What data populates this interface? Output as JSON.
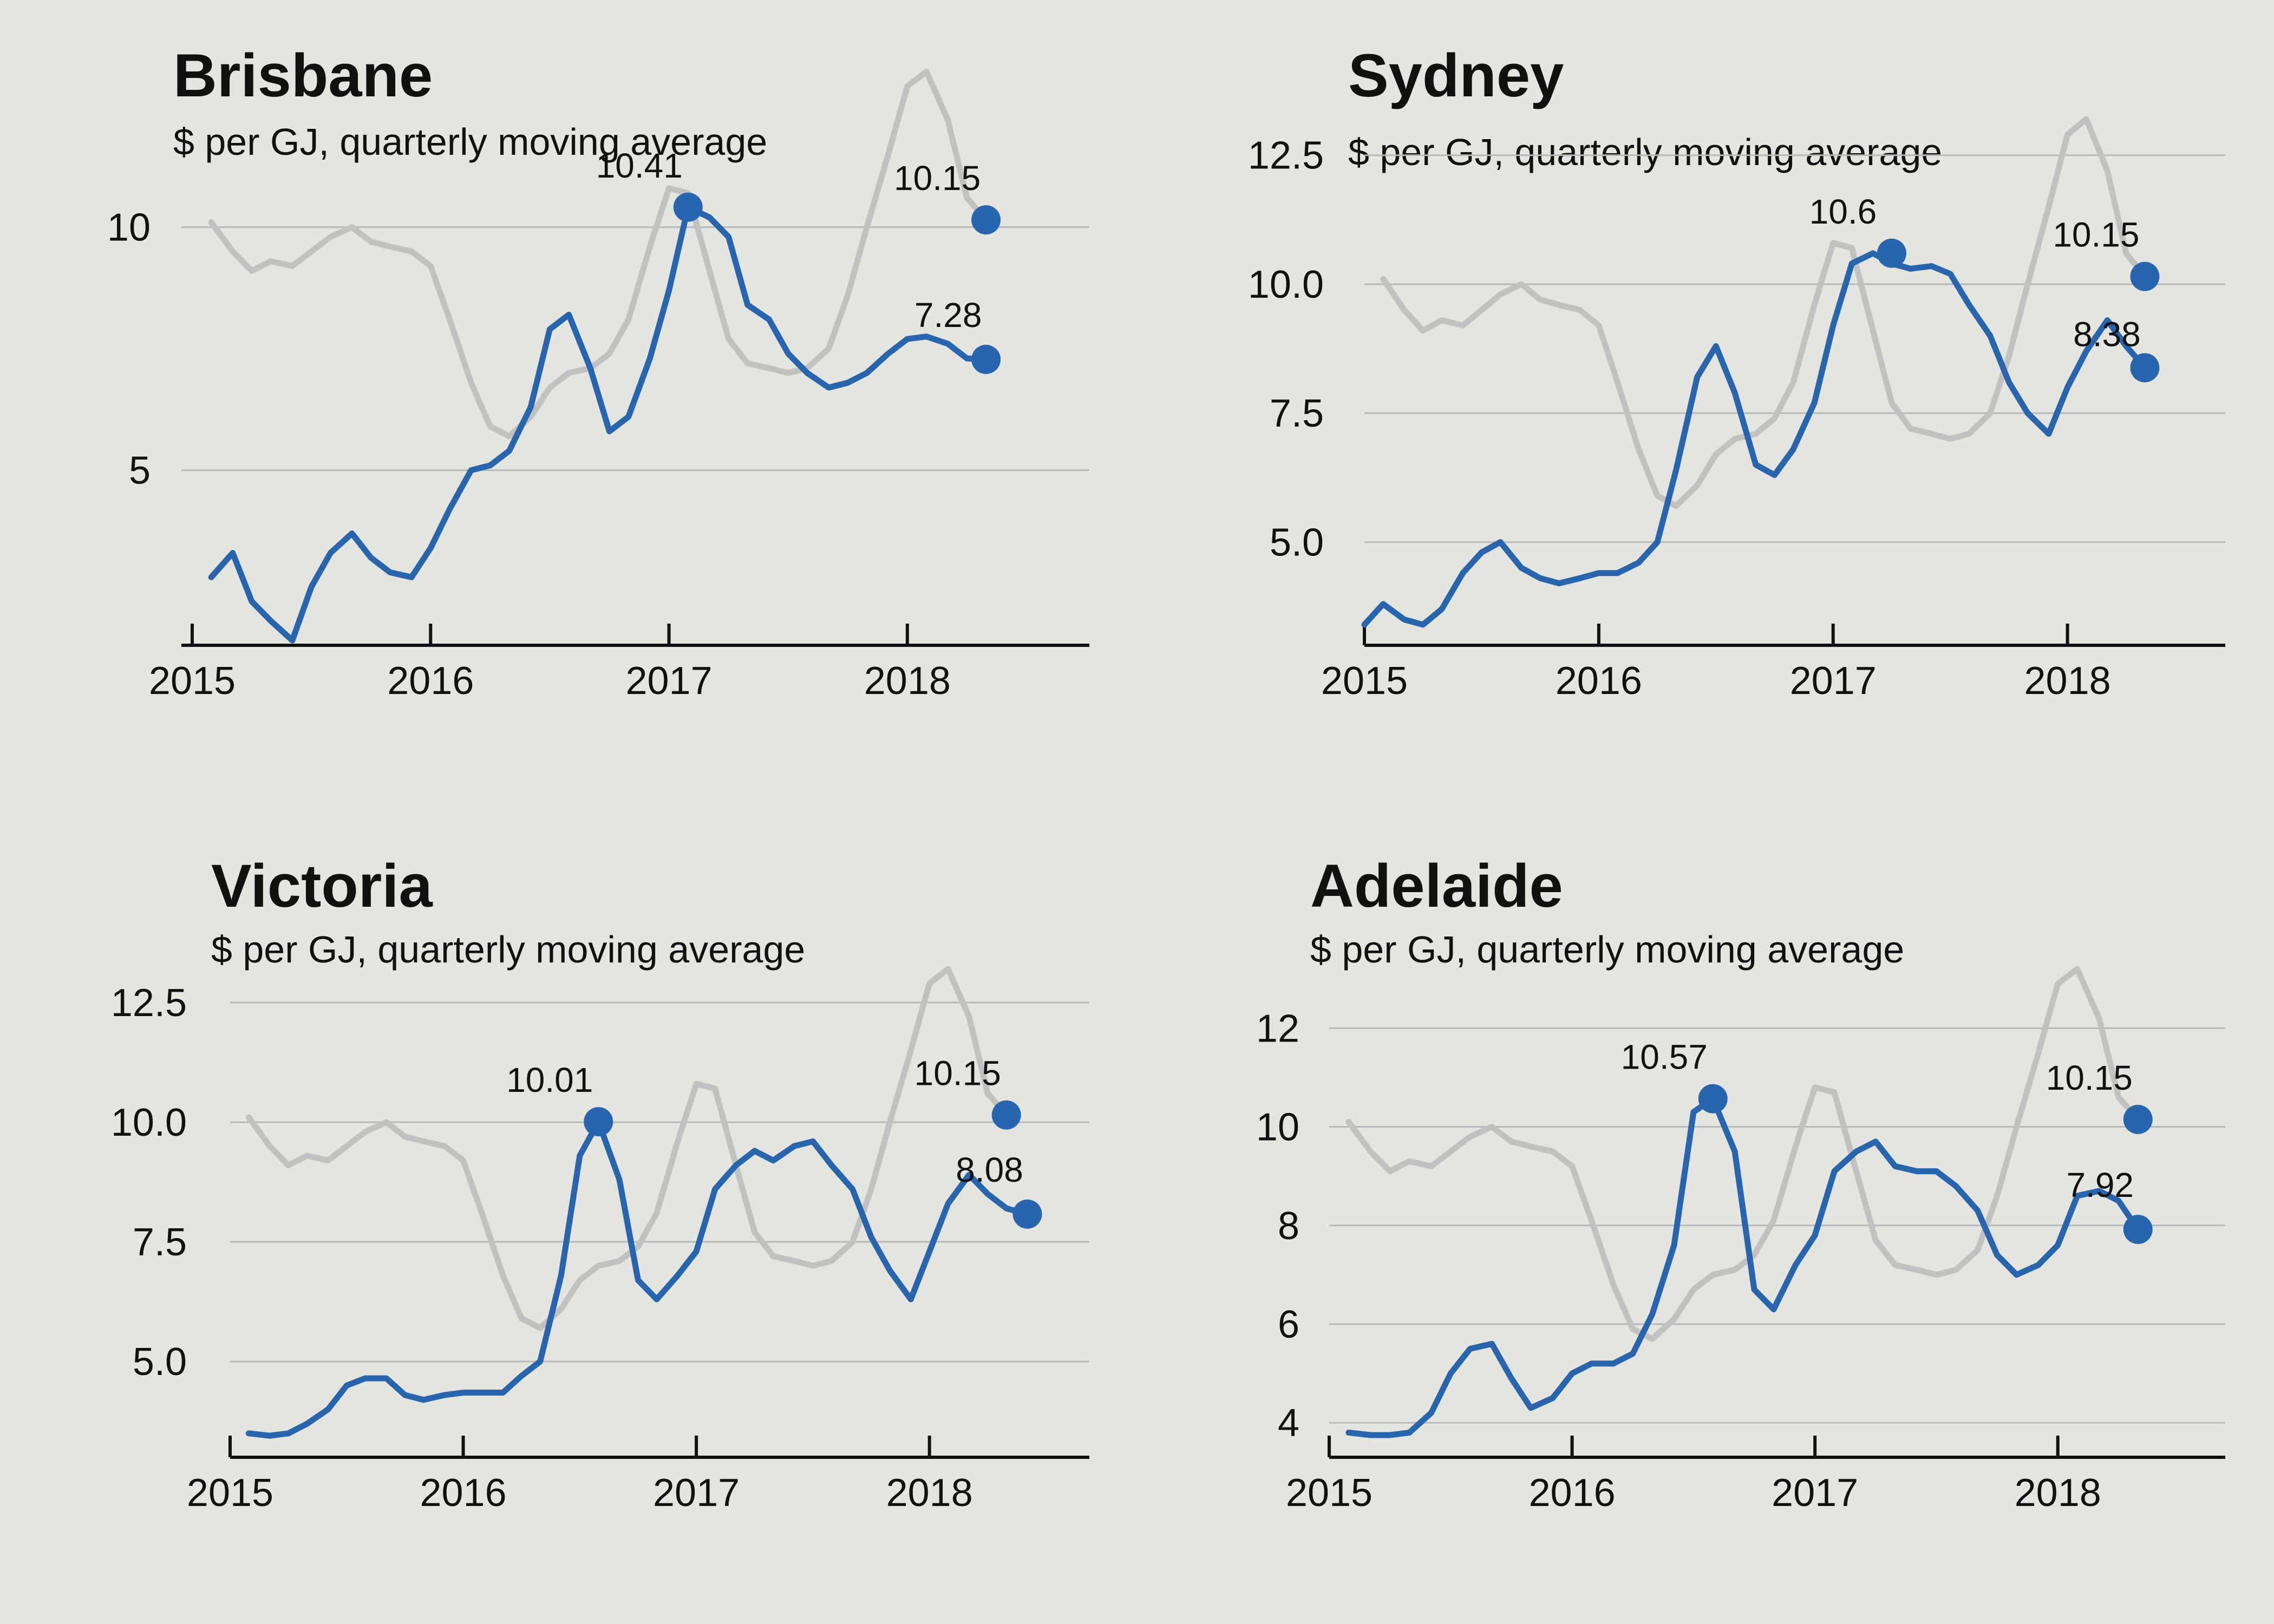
{
  "chart_data": [
    {
      "type": "line",
      "title": "Brisbane",
      "subtitle": "$ per GJ, quarterly moving average",
      "xlim": [
        2015.0,
        2018.6
      ],
      "ylim": [
        1.4,
        12.2
      ],
      "y_ticks": [
        5,
        10
      ],
      "y_tick_labels": [
        "5",
        "10"
      ],
      "x_ticks": [
        2015,
        2016,
        2017,
        2018
      ],
      "x_tick_labels": [
        "2015",
        "2016",
        "2017",
        "2018"
      ],
      "grid": "horizontal",
      "series": [
        {
          "role": "reference",
          "color": "#c1c1c1",
          "x": [
            2015.08,
            2015.17,
            2015.25,
            2015.33,
            2015.42,
            2015.5,
            2015.58,
            2015.67,
            2015.75,
            2015.83,
            2015.92,
            2016.0,
            2016.08,
            2016.17,
            2016.25,
            2016.33,
            2016.42,
            2016.5,
            2016.58,
            2016.67,
            2016.75,
            2016.83,
            2016.92,
            2017.0,
            2017.08,
            2017.17,
            2017.25,
            2017.33,
            2017.42,
            2017.5,
            2017.58,
            2017.67,
            2017.75,
            2017.83,
            2017.92,
            2018.0,
            2018.08,
            2018.17,
            2018.25,
            2018.33
          ],
          "y": [
            10.1,
            9.5,
            9.1,
            9.3,
            9.2,
            9.5,
            9.8,
            10.0,
            9.7,
            9.6,
            9.5,
            9.2,
            8.1,
            6.8,
            5.9,
            5.7,
            6.1,
            6.7,
            7.0,
            7.1,
            7.4,
            8.1,
            9.6,
            10.8,
            10.7,
            9.1,
            7.7,
            7.2,
            7.1,
            7.0,
            7.1,
            7.5,
            8.6,
            10.0,
            11.5,
            12.9,
            13.2,
            12.2,
            10.6,
            10.15
          ]
        },
        {
          "role": "city",
          "color": "#2766ae",
          "x": [
            2015.08,
            2015.17,
            2015.25,
            2015.33,
            2015.42,
            2015.5,
            2015.58,
            2015.67,
            2015.75,
            2015.83,
            2015.92,
            2016.0,
            2016.08,
            2016.17,
            2016.25,
            2016.33,
            2016.42,
            2016.5,
            2016.58,
            2016.67,
            2016.75,
            2016.83,
            2016.92,
            2017.0,
            2017.08,
            2017.17,
            2017.25,
            2017.33,
            2017.42,
            2017.5,
            2017.58,
            2017.67,
            2017.75,
            2017.83,
            2017.92,
            2018.0,
            2018.08,
            2018.17,
            2018.25,
            2018.33
          ],
          "y": [
            2.8,
            3.3,
            2.3,
            1.9,
            1.5,
            2.6,
            3.3,
            3.7,
            3.2,
            2.9,
            2.8,
            3.4,
            4.2,
            5.0,
            5.1,
            5.4,
            6.3,
            7.9,
            8.2,
            7.1,
            5.8,
            6.1,
            7.3,
            8.7,
            10.41,
            10.2,
            9.8,
            8.4,
            8.1,
            7.4,
            7.0,
            6.7,
            6.8,
            7.0,
            7.4,
            7.7,
            7.75,
            7.6,
            7.3,
            7.28
          ]
        }
      ],
      "annotations": [
        {
          "x": 2017.08,
          "y": 10.41,
          "label": "10.41"
        },
        {
          "x": 2018.33,
          "y": 10.15,
          "label": "10.15"
        },
        {
          "x": 2018.33,
          "y": 7.28,
          "label": "7.28"
        }
      ]
    },
    {
      "type": "line",
      "title": "Sydney",
      "subtitle": "$ per GJ, quarterly moving average",
      "xlim": [
        2015.0,
        2018.5
      ],
      "ylim": [
        3.0,
        13.2
      ],
      "y_ticks": [
        5.0,
        7.5,
        10.0,
        12.5
      ],
      "y_tick_labels": [
        "5.0",
        "7.5",
        "10.0",
        "12.5"
      ],
      "x_ticks": [
        2015,
        2016,
        2017,
        2018
      ],
      "x_tick_labels": [
        "2015",
        "2016",
        "2017",
        "2018"
      ],
      "grid": "horizontal",
      "series": [
        {
          "role": "reference",
          "color": "#c1c1c1",
          "x": [
            2015.08,
            2015.17,
            2015.25,
            2015.33,
            2015.42,
            2015.5,
            2015.58,
            2015.67,
            2015.75,
            2015.83,
            2015.92,
            2016.0,
            2016.08,
            2016.17,
            2016.25,
            2016.33,
            2016.42,
            2016.5,
            2016.58,
            2016.67,
            2016.75,
            2016.83,
            2016.92,
            2017.0,
            2017.08,
            2017.17,
            2017.25,
            2017.33,
            2017.42,
            2017.5,
            2017.58,
            2017.67,
            2017.75,
            2017.83,
            2017.92,
            2018.0,
            2018.08,
            2018.17,
            2018.25,
            2018.33
          ],
          "y": [
            10.1,
            9.5,
            9.1,
            9.3,
            9.2,
            9.5,
            9.8,
            10.0,
            9.7,
            9.6,
            9.5,
            9.2,
            8.1,
            6.8,
            5.9,
            5.7,
            6.1,
            6.7,
            7.0,
            7.1,
            7.4,
            8.1,
            9.6,
            10.8,
            10.7,
            9.1,
            7.7,
            7.2,
            7.1,
            7.0,
            7.1,
            7.5,
            8.6,
            10.0,
            11.5,
            12.9,
            13.2,
            12.2,
            10.6,
            10.15
          ]
        },
        {
          "role": "city",
          "color": "#2766ae",
          "x": [
            2015.0,
            2015.08,
            2015.17,
            2015.25,
            2015.33,
            2015.42,
            2015.5,
            2015.58,
            2015.67,
            2015.75,
            2015.83,
            2015.92,
            2016.0,
            2016.08,
            2016.17,
            2016.25,
            2016.33,
            2016.42,
            2016.5,
            2016.58,
            2016.67,
            2016.75,
            2016.83,
            2016.92,
            2017.0,
            2017.08,
            2017.17,
            2017.25,
            2017.33,
            2017.42,
            2017.5,
            2017.58,
            2017.67,
            2017.75,
            2017.83,
            2017.92,
            2018.0,
            2018.08,
            2018.17,
            2018.25,
            2018.33
          ],
          "y": [
            3.4,
            3.8,
            3.5,
            3.4,
            3.7,
            4.4,
            4.8,
            5.0,
            4.5,
            4.3,
            4.2,
            4.3,
            4.4,
            4.4,
            4.6,
            5.0,
            6.4,
            8.2,
            8.8,
            7.9,
            6.5,
            6.3,
            6.8,
            7.7,
            9.2,
            10.4,
            10.6,
            10.4,
            10.3,
            10.35,
            10.2,
            9.6,
            9.0,
            8.1,
            7.5,
            7.1,
            8.0,
            8.7,
            9.3,
            8.8,
            8.38
          ]
        }
      ],
      "annotations": [
        {
          "x": 2017.25,
          "y": 10.6,
          "label": "10.6"
        },
        {
          "x": 2018.33,
          "y": 10.15,
          "label": "10.15"
        },
        {
          "x": 2018.33,
          "y": 8.38,
          "label": "8.38"
        }
      ]
    },
    {
      "type": "line",
      "title": "Victoria",
      "subtitle": "$ per GJ, quarterly moving average",
      "xlim": [
        2015.0,
        2018.6
      ],
      "ylim": [
        3.0,
        13.2
      ],
      "y_ticks": [
        5.0,
        7.5,
        10.0,
        12.5
      ],
      "y_tick_labels": [
        "5.0",
        "7.5",
        "10.0",
        "12.5"
      ],
      "x_ticks": [
        2015,
        2016,
        2017,
        2018
      ],
      "x_tick_labels": [
        "2015",
        "2016",
        "2017",
        "2018"
      ],
      "grid": "horizontal",
      "series": [
        {
          "role": "reference",
          "color": "#c1c1c1",
          "x": [
            2015.08,
            2015.17,
            2015.25,
            2015.33,
            2015.42,
            2015.5,
            2015.58,
            2015.67,
            2015.75,
            2015.83,
            2015.92,
            2016.0,
            2016.08,
            2016.17,
            2016.25,
            2016.33,
            2016.42,
            2016.5,
            2016.58,
            2016.67,
            2016.75,
            2016.83,
            2016.92,
            2017.0,
            2017.08,
            2017.17,
            2017.25,
            2017.33,
            2017.42,
            2017.5,
            2017.58,
            2017.67,
            2017.75,
            2017.83,
            2017.92,
            2018.0,
            2018.08,
            2018.17,
            2018.25,
            2018.33
          ],
          "y": [
            10.1,
            9.5,
            9.1,
            9.3,
            9.2,
            9.5,
            9.8,
            10.0,
            9.7,
            9.6,
            9.5,
            9.2,
            8.1,
            6.8,
            5.9,
            5.7,
            6.1,
            6.7,
            7.0,
            7.1,
            7.4,
            8.1,
            9.6,
            10.8,
            10.7,
            9.1,
            7.7,
            7.2,
            7.1,
            7.0,
            7.1,
            7.5,
            8.6,
            10.0,
            11.5,
            12.9,
            13.2,
            12.2,
            10.6,
            10.15
          ]
        },
        {
          "role": "city",
          "color": "#2766ae",
          "x": [
            2015.08,
            2015.17,
            2015.25,
            2015.33,
            2015.42,
            2015.5,
            2015.58,
            2015.67,
            2015.75,
            2015.83,
            2015.92,
            2016.0,
            2016.08,
            2016.17,
            2016.25,
            2016.33,
            2016.42,
            2016.5,
            2016.58,
            2016.67,
            2016.75,
            2016.83,
            2016.92,
            2017.0,
            2017.08,
            2017.17,
            2017.25,
            2017.33,
            2017.42,
            2017.5,
            2017.58,
            2017.67,
            2017.75,
            2017.83,
            2017.92,
            2018.0,
            2018.08,
            2018.17,
            2018.25,
            2018.33,
            2018.42
          ],
          "y": [
            3.5,
            3.45,
            3.5,
            3.7,
            4.0,
            4.5,
            4.65,
            4.65,
            4.3,
            4.2,
            4.3,
            4.35,
            4.35,
            4.35,
            4.7,
            5.0,
            6.8,
            9.3,
            10.01,
            8.8,
            6.7,
            6.3,
            6.8,
            7.3,
            8.6,
            9.1,
            9.4,
            9.2,
            9.5,
            9.6,
            9.1,
            8.6,
            7.6,
            6.9,
            6.3,
            7.3,
            8.3,
            8.9,
            8.5,
            8.2,
            8.08
          ]
        }
      ],
      "annotations": [
        {
          "x": 2016.58,
          "y": 10.01,
          "label": "10.01"
        },
        {
          "x": 2018.33,
          "y": 10.15,
          "label": "10.15"
        },
        {
          "x": 2018.42,
          "y": 8.08,
          "label": "8.08"
        }
      ]
    },
    {
      "type": "line",
      "title": "Adelaide",
      "subtitle": "$ per GJ, quarterly moving average",
      "xlim": [
        2015.0,
        2018.5
      ],
      "ylim": [
        3.3,
        13.2
      ],
      "y_ticks": [
        4,
        6,
        8,
        10,
        12
      ],
      "y_tick_labels": [
        "4",
        "6",
        "8",
        "10",
        "12"
      ],
      "x_ticks": [
        2015,
        2016,
        2017,
        2018
      ],
      "x_tick_labels": [
        "2015",
        "2016",
        "2017",
        "2018"
      ],
      "grid": "horizontal",
      "series": [
        {
          "role": "reference",
          "color": "#c1c1c1",
          "x": [
            2015.08,
            2015.17,
            2015.25,
            2015.33,
            2015.42,
            2015.5,
            2015.58,
            2015.67,
            2015.75,
            2015.83,
            2015.92,
            2016.0,
            2016.08,
            2016.17,
            2016.25,
            2016.33,
            2016.42,
            2016.5,
            2016.58,
            2016.67,
            2016.75,
            2016.83,
            2016.92,
            2017.0,
            2017.08,
            2017.17,
            2017.25,
            2017.33,
            2017.42,
            2017.5,
            2017.58,
            2017.67,
            2017.75,
            2017.83,
            2017.92,
            2018.0,
            2018.08,
            2018.17,
            2018.25,
            2018.33
          ],
          "y": [
            10.1,
            9.5,
            9.1,
            9.3,
            9.2,
            9.5,
            9.8,
            10.0,
            9.7,
            9.6,
            9.5,
            9.2,
            8.1,
            6.8,
            5.9,
            5.7,
            6.1,
            6.7,
            7.0,
            7.1,
            7.4,
            8.1,
            9.6,
            10.8,
            10.7,
            9.1,
            7.7,
            7.2,
            7.1,
            7.0,
            7.1,
            7.5,
            8.6,
            10.0,
            11.5,
            12.9,
            13.2,
            12.2,
            10.6,
            10.15
          ]
        },
        {
          "role": "city",
          "color": "#2766ae",
          "x": [
            2015.08,
            2015.17,
            2015.25,
            2015.33,
            2015.42,
            2015.5,
            2015.58,
            2015.67,
            2015.75,
            2015.83,
            2015.92,
            2016.0,
            2016.08,
            2016.17,
            2016.25,
            2016.33,
            2016.42,
            2016.5,
            2016.58,
            2016.67,
            2016.75,
            2016.83,
            2016.92,
            2017.0,
            2017.08,
            2017.17,
            2017.25,
            2017.33,
            2017.42,
            2017.5,
            2017.58,
            2017.67,
            2017.75,
            2017.83,
            2017.92,
            2018.0,
            2018.08,
            2018.17,
            2018.25,
            2018.33
          ],
          "y": [
            3.8,
            3.75,
            3.75,
            3.8,
            4.2,
            5.0,
            5.5,
            5.6,
            4.9,
            4.3,
            4.5,
            5.0,
            5.2,
            5.2,
            5.4,
            6.2,
            7.6,
            10.3,
            10.57,
            9.5,
            6.7,
            6.3,
            7.2,
            7.8,
            9.1,
            9.5,
            9.7,
            9.2,
            9.1,
            9.1,
            8.8,
            8.3,
            7.4,
            7.0,
            7.2,
            7.6,
            8.6,
            8.7,
            8.5,
            7.92
          ]
        }
      ],
      "annotations": [
        {
          "x": 2016.58,
          "y": 10.57,
          "label": "10.57"
        },
        {
          "x": 2018.33,
          "y": 10.15,
          "label": "10.15"
        },
        {
          "x": 2018.33,
          "y": 7.92,
          "label": "7.92"
        }
      ]
    }
  ]
}
